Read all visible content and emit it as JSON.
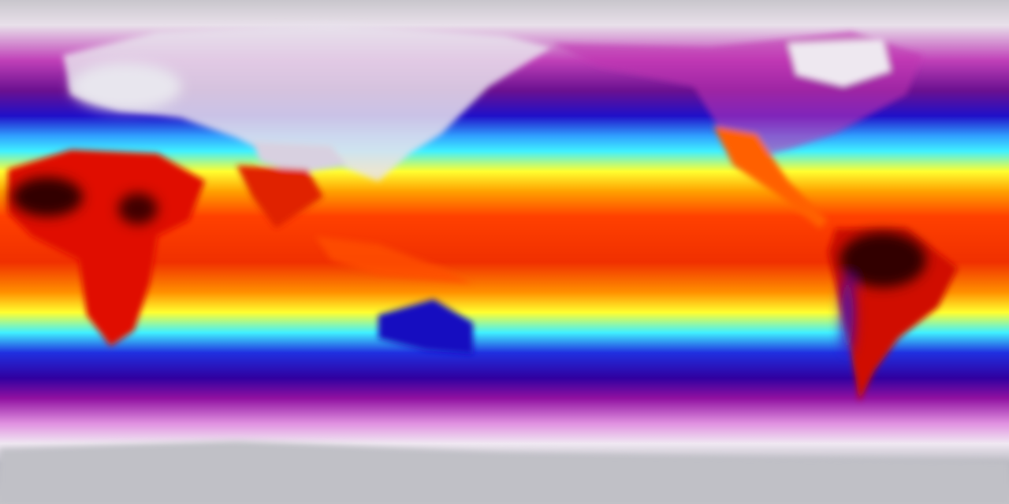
{
  "map": {
    "projection": "equirectangular",
    "variable": "temperature",
    "colorscale": [
      "#c8c8cc",
      "#efe3ef",
      "#d040c0",
      "#800090",
      "#1010d0",
      "#30f0ff",
      "#ffff20",
      "#ff9000",
      "#f02000",
      "#400000"
    ],
    "landmasses": [
      "north-america",
      "south-america",
      "africa",
      "europe",
      "asia",
      "australia",
      "greenland",
      "antarctica",
      "india",
      "indonesia"
    ]
  }
}
